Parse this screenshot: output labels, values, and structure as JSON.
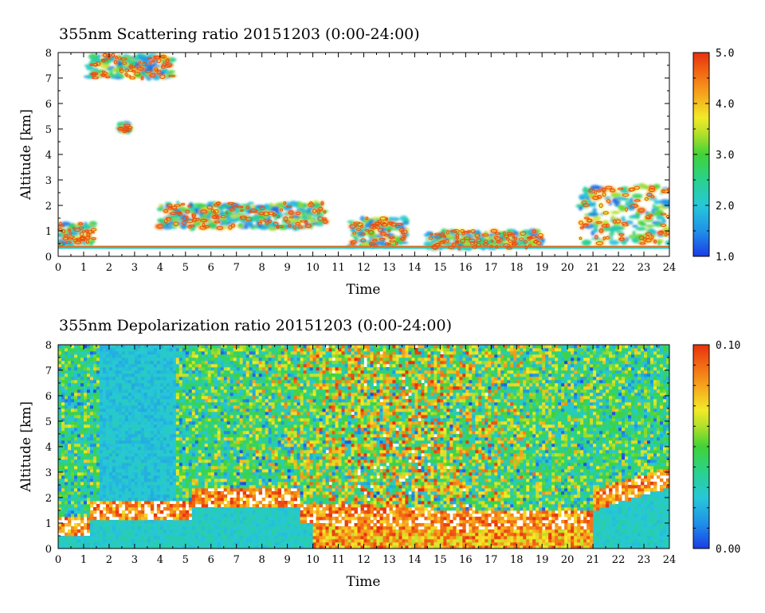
{
  "chart_data": [
    {
      "type": "heatmap",
      "title": "355nm Scattering ratio  20151203 (0:00-24:00)",
      "xlabel": "Time",
      "ylabel": "Altitude [km]",
      "xlim": [
        0,
        24
      ],
      "ylim": [
        0,
        8
      ],
      "x_ticks": [
        "0",
        "1",
        "2",
        "3",
        "4",
        "5",
        "6",
        "7",
        "8",
        "9",
        "10",
        "11",
        "12",
        "13",
        "14",
        "15",
        "16",
        "17",
        "18",
        "19",
        "20",
        "21",
        "22",
        "23",
        "24"
      ],
      "y_ticks": [
        "0",
        "1",
        "2",
        "3",
        "4",
        "5",
        "6",
        "7",
        "8"
      ],
      "colorbar": {
        "range": [
          1.0,
          5.0
        ],
        "tick_values": [
          1.0,
          2.0,
          3.0,
          4.0,
          5.0
        ],
        "tick_labels": [
          "1.0",
          "2.0",
          "3.0",
          "4.0",
          "5.0"
        ]
      },
      "features": [
        {
          "time": [
            0.0,
            1.4
          ],
          "alt": [
            0.4,
            1.3
          ]
        },
        {
          "time": [
            4.0,
            10.5
          ],
          "alt": [
            1.1,
            2.1
          ]
        },
        {
          "time": [
            1.2,
            4.5
          ],
          "alt": [
            7.0,
            7.9
          ]
        },
        {
          "time": [
            2.4,
            2.8
          ],
          "alt": [
            4.9,
            5.2
          ]
        },
        {
          "time": [
            11.5,
            13.7
          ],
          "alt": [
            0.4,
            1.5
          ]
        },
        {
          "time": [
            14.5,
            19.0
          ],
          "alt": [
            0.3,
            1.0
          ]
        },
        {
          "time": [
            20.5,
            24.0
          ],
          "alt": [
            0.5,
            2.8
          ]
        }
      ]
    },
    {
      "type": "heatmap",
      "title": "355nm Depolarization ratio  20151203 (0:00-24:00)",
      "xlabel": "Time",
      "ylabel": "Altitude [km]",
      "xlim": [
        0,
        24
      ],
      "ylim": [
        0,
        8
      ],
      "x_ticks": [
        "0",
        "1",
        "2",
        "3",
        "4",
        "5",
        "6",
        "7",
        "8",
        "9",
        "10",
        "11",
        "12",
        "13",
        "14",
        "15",
        "16",
        "17",
        "18",
        "19",
        "20",
        "21",
        "22",
        "23",
        "24"
      ],
      "y_ticks": [
        "0",
        "1",
        "2",
        "3",
        "4",
        "5",
        "6",
        "7",
        "8"
      ],
      "colorbar": {
        "range": [
          0.0,
          0.1
        ],
        "tick_values": [
          0.0,
          0.1
        ],
        "tick_labels": [
          "0.00",
          "0.10"
        ]
      }
    }
  ]
}
